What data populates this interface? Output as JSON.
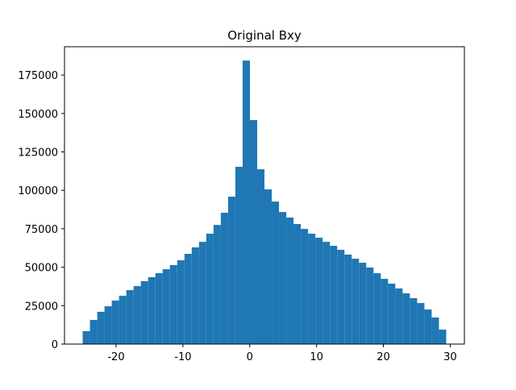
{
  "chart_data": {
    "type": "histogram",
    "title": "Original Bxy",
    "color": "#1f77b4",
    "bins": [
      -25,
      -23.912,
      -22.824,
      -21.736,
      -20.648,
      -19.56,
      -18.472,
      -17.384,
      -16.296,
      -15.208,
      -14.12,
      -13.032,
      -11.944,
      -10.856,
      -9.768,
      -8.68,
      -7.592,
      -6.504,
      -5.416,
      -4.328,
      -3.24,
      -2.152,
      -1.064,
      0.024,
      1.112,
      2.2,
      3.288,
      4.376,
      5.464,
      6.552,
      7.64,
      8.728,
      9.816,
      10.904,
      11.992,
      13.08,
      14.168,
      15.256,
      16.344,
      17.432,
      18.52,
      19.608,
      20.696,
      21.784,
      22.872,
      23.96,
      25.048,
      26.136,
      27.224,
      28.312,
      29.4
    ],
    "values": [
      8400,
      15700,
      21000,
      24600,
      28300,
      31400,
      35100,
      37700,
      40900,
      43500,
      46100,
      48700,
      51400,
      54500,
      58700,
      62900,
      66500,
      71800,
      77500,
      85400,
      95900,
      115300,
      184400,
      145700,
      113700,
      100600,
      92700,
      85900,
      82300,
      78100,
      74900,
      71800,
      69200,
      66500,
      63900,
      61300,
      58200,
      55500,
      52900,
      49800,
      46100,
      42400,
      39300,
      36200,
      33000,
      29900,
      26700,
      22500,
      17300,
      9400
    ],
    "xlim": [
      -27.72,
      32.12
    ],
    "ylim": [
      0,
      193400
    ],
    "xticks": [
      -20,
      -10,
      0,
      10,
      20,
      30
    ],
    "yticks": [
      0,
      25000,
      50000,
      75000,
      100000,
      125000,
      150000,
      175000
    ]
  }
}
